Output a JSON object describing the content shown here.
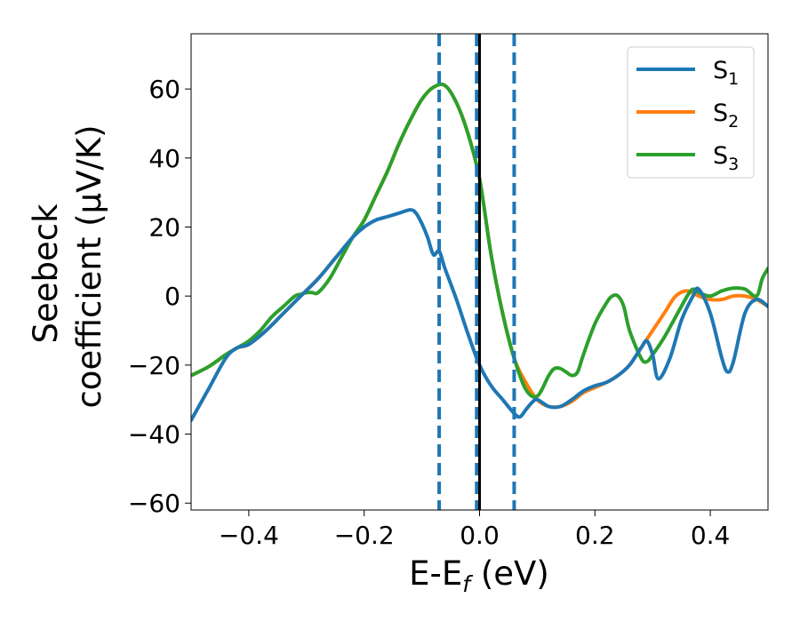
{
  "chart_data": {
    "type": "line",
    "xlabel_main": "E-E",
    "xlabel_sub": "f",
    "xlabel_unit": " (eV)",
    "ylabel_line1": "Seebeck",
    "ylabel_line2": "coefficient  (μV/K)",
    "xlim": [
      -0.5,
      0.5
    ],
    "ylim": [
      -62,
      76
    ],
    "x_ticks": [
      -0.4,
      -0.2,
      0.0,
      0.2,
      0.4
    ],
    "x_tick_labels": [
      "−0.4",
      "−0.2",
      "0.0",
      "0.2",
      "0.4"
    ],
    "y_ticks": [
      -60,
      -40,
      -20,
      0,
      20,
      40,
      60
    ],
    "y_tick_labels": [
      "−60",
      "−40",
      "−20",
      "0",
      "20",
      "40",
      "60"
    ],
    "grid": false,
    "legend_position": "top-right",
    "series": [
      {
        "name": "S",
        "subscript": "1",
        "color": "#1f77b4",
        "x": [
          -0.5,
          -0.47,
          -0.44,
          -0.42,
          -0.4,
          -0.37,
          -0.34,
          -0.31,
          -0.28,
          -0.25,
          -0.22,
          -0.2,
          -0.18,
          -0.16,
          -0.14,
          -0.12,
          -0.11,
          -0.1,
          -0.09,
          -0.08,
          -0.07,
          -0.06,
          -0.04,
          -0.02,
          0.0,
          0.02,
          0.04,
          0.06,
          0.07,
          0.08,
          0.09,
          0.1,
          0.12,
          0.14,
          0.16,
          0.18,
          0.2,
          0.22,
          0.24,
          0.26,
          0.28,
          0.29,
          0.3,
          0.31,
          0.33,
          0.35,
          0.37,
          0.38,
          0.4,
          0.42,
          0.43,
          0.44,
          0.46,
          0.48,
          0.5
        ],
        "y": [
          -36,
          -27,
          -18,
          -15,
          -14,
          -10,
          -5,
          0,
          5,
          11,
          17,
          20,
          22,
          23,
          24,
          25,
          24,
          21,
          17,
          12,
          13,
          8,
          -1,
          -11,
          -20,
          -26,
          -30,
          -34,
          -35,
          -33,
          -31,
          -30,
          -32,
          -32,
          -30,
          -27.5,
          -26,
          -25,
          -23,
          -20,
          -15,
          -13,
          -17,
          -24,
          -18,
          -7,
          0,
          2,
          -5,
          -18,
          -22,
          -19,
          -5,
          -1,
          -3
        ]
      },
      {
        "name": "S",
        "subscript": "2",
        "color": "#ff7f0e",
        "x": [
          -0.5,
          -0.47,
          -0.44,
          -0.42,
          -0.4,
          -0.37,
          -0.34,
          -0.31,
          -0.28,
          -0.25,
          -0.22,
          -0.2,
          -0.18,
          -0.16,
          -0.14,
          -0.12,
          -0.1,
          -0.08,
          -0.06,
          -0.04,
          -0.02,
          0.0,
          0.02,
          0.04,
          0.06,
          0.08,
          0.1,
          0.12,
          0.14,
          0.16,
          0.18,
          0.2,
          0.22,
          0.24,
          0.26,
          0.28,
          0.3,
          0.32,
          0.34,
          0.36,
          0.38,
          0.4,
          0.42,
          0.44,
          0.46,
          0.48,
          0.5
        ],
        "y": [
          -23,
          -20.5,
          -17,
          -15,
          -14,
          -10,
          -5,
          0,
          5,
          11,
          17,
          22,
          29,
          36,
          44,
          51,
          57,
          60.5,
          61,
          56,
          47,
          34,
          12,
          -5,
          -18,
          -25,
          -30,
          -32,
          -32,
          -30.5,
          -28,
          -26.5,
          -25,
          -23,
          -20,
          -15,
          -10,
          -5,
          0,
          1.5,
          0,
          -1,
          -1,
          0,
          0,
          -1,
          -3
        ]
      },
      {
        "name": "S",
        "subscript": "3",
        "color": "#2ca02c",
        "x": [
          -0.5,
          -0.47,
          -0.44,
          -0.42,
          -0.4,
          -0.38,
          -0.36,
          -0.34,
          -0.32,
          -0.31,
          -0.3,
          -0.29,
          -0.28,
          -0.26,
          -0.24,
          -0.22,
          -0.2,
          -0.18,
          -0.16,
          -0.14,
          -0.12,
          -0.1,
          -0.08,
          -0.06,
          -0.04,
          -0.02,
          0.0,
          0.02,
          0.04,
          0.06,
          0.08,
          0.1,
          0.12,
          0.13,
          0.14,
          0.15,
          0.16,
          0.17,
          0.18,
          0.2,
          0.22,
          0.23,
          0.24,
          0.25,
          0.26,
          0.28,
          0.29,
          0.3,
          0.32,
          0.34,
          0.36,
          0.37,
          0.38,
          0.4,
          0.42,
          0.44,
          0.46,
          0.48,
          0.49,
          0.5
        ],
        "y": [
          -23,
          -20.5,
          -17,
          -15,
          -13,
          -10,
          -6,
          -3,
          0,
          0.5,
          1,
          1,
          1,
          5,
          11,
          17,
          22,
          29,
          36,
          44,
          51,
          57,
          60.5,
          61,
          56,
          47,
          34,
          12,
          -5,
          -18,
          -27,
          -29,
          -23,
          -21,
          -21,
          -22,
          -23,
          -22,
          -17,
          -8,
          -2,
          0,
          0,
          -3,
          -10,
          -18,
          -19,
          -17,
          -12,
          -6,
          0,
          2,
          1,
          0,
          1.5,
          2.3,
          2,
          0,
          5,
          8
        ]
      }
    ],
    "vertical_lines": [
      {
        "x": -0.07,
        "style": "dashed",
        "color": "#1f77b4"
      },
      {
        "x": -0.005,
        "style": "dashed",
        "color": "#1f77b4"
      },
      {
        "x": 0.06,
        "style": "dashed",
        "color": "#1f77b4"
      },
      {
        "x": 0.0,
        "style": "solid",
        "color": "#000000"
      }
    ]
  }
}
